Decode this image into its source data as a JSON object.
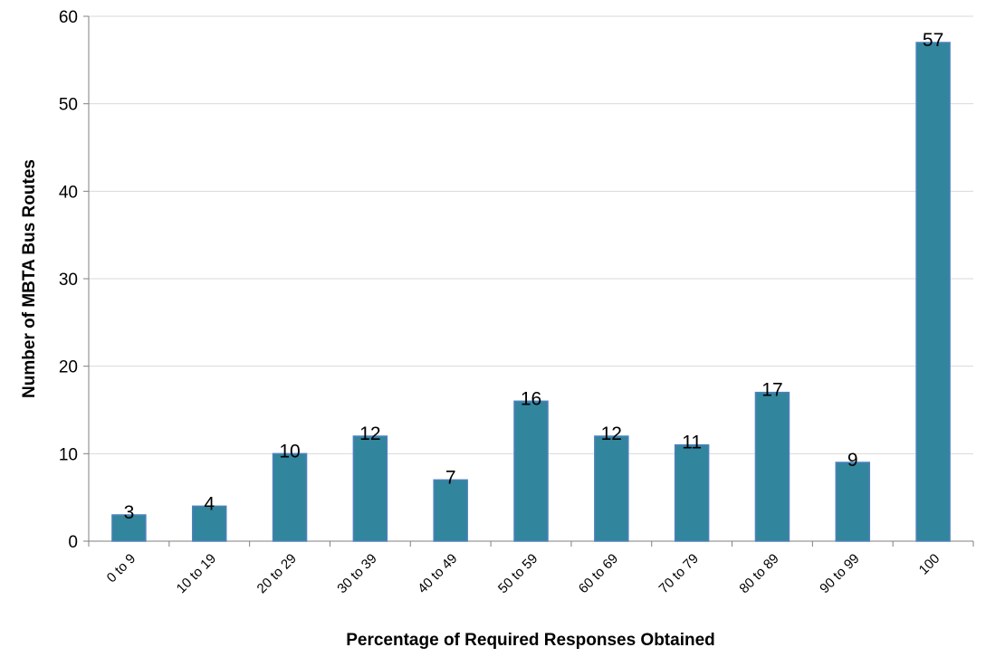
{
  "chart_data": {
    "type": "bar",
    "categories": [
      "0 to 9",
      "10 to 19",
      "20 to 29",
      "30 to 39",
      "40 to 49",
      "50 to 59",
      "60 to 69",
      "70 to 79",
      "80 to 89",
      "90 to 99",
      "100"
    ],
    "values": [
      3,
      4,
      10,
      12,
      7,
      16,
      12,
      11,
      17,
      9,
      57
    ],
    "xlabel": "Percentage of Required Responses Obtained",
    "ylabel": "Number of MBTA Bus Routes",
    "ylim": [
      0,
      60
    ],
    "yticks": [
      0,
      10,
      20,
      30,
      40,
      50,
      60
    ],
    "grid": true,
    "legend": "none",
    "data_labels": true,
    "colors": {
      "bar_fill": "#31859c",
      "bar_edge": "#4f81bd",
      "grid": "#d9d9d9",
      "axis": "#808080"
    }
  }
}
